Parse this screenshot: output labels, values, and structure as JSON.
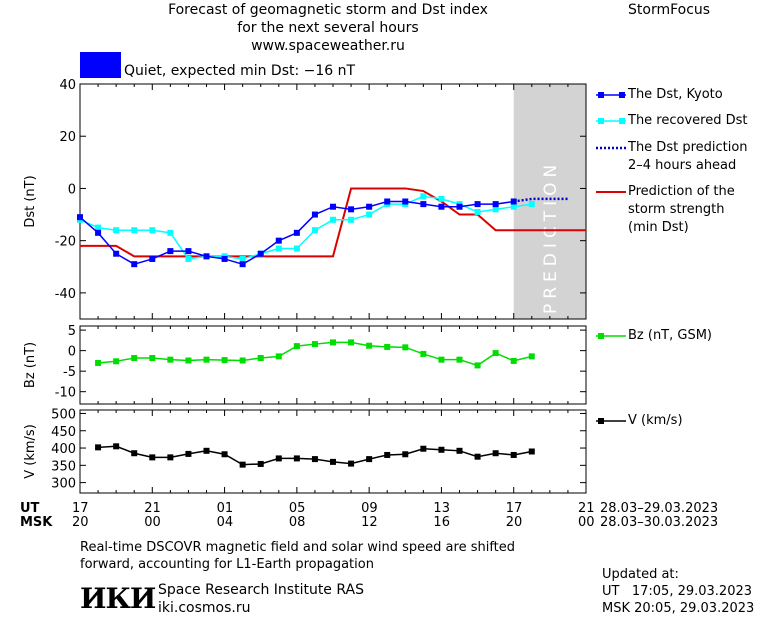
{
  "header": {
    "title_line1": "Forecast of geomagnetic storm and Dst index",
    "title_line2": "for the next several hours",
    "url": "www.spaceweather.ru",
    "brand": "StormFocus",
    "status_text": "Quiet, expected min Dst: −16 nT",
    "status_color": "#0000ff"
  },
  "colors": {
    "dst_kyoto": "#0000ff",
    "dst_recovered": "#00ffff",
    "dst_prediction": "#0000cc",
    "storm_strength": "#dd0000",
    "bz": "#00dd00",
    "v": "#000000",
    "prediction_band": "#d3d3d3"
  },
  "prediction_label": "PREDICTION",
  "time_axis": {
    "ut_label": "UT",
    "msk_label": "MSK",
    "ut_ticks": [
      "17",
      "21",
      "01",
      "05",
      "09",
      "13",
      "17",
      "21"
    ],
    "msk_ticks": [
      "20",
      "00",
      "04",
      "08",
      "12",
      "16",
      "20",
      "00"
    ],
    "ut_range": "28.03–29.03.2023",
    "msk_range": "28.03–30.03.2023"
  },
  "footer": {
    "note_line1": "Real-time DSCOVR magnetic field and solar wind speed are shifted",
    "note_line2": "forward, accounting for L1-Earth propagation",
    "logo": "ИКИ",
    "institute": "Space Research Institute RAS",
    "site": "iki.cosmos.ru",
    "updated_label": "Updated at:",
    "updated_ut": "UT   17:05, 29.03.2023",
    "updated_msk": "MSK 20:05, 29.03.2023"
  },
  "chart_data": [
    {
      "type": "line",
      "ylabel": "Dst (nT)",
      "ylim": [
        -50,
        40
      ],
      "yticks": [
        40,
        20,
        0,
        -20,
        -40
      ],
      "x_unit": "hours from 17 UT 28.03",
      "xlim": [
        0,
        28
      ],
      "prediction_band": [
        24,
        28
      ],
      "series": [
        {
          "name": "The Dst, Kyoto",
          "x": [
            0,
            1,
            2,
            3,
            4,
            5,
            6,
            7,
            8,
            9,
            10,
            11,
            12,
            13,
            14,
            15,
            16,
            17,
            18,
            19,
            20,
            21,
            22,
            23,
            24
          ],
          "values": [
            -11,
            -17,
            -25,
            -29,
            -27,
            -24,
            -24,
            -26,
            -27,
            -29,
            -25,
            -20,
            -17,
            -10,
            -7,
            -8,
            -7,
            -5,
            -5,
            -6,
            -7,
            -7,
            -6,
            -6,
            -5
          ]
        },
        {
          "name": "The recovered Dst",
          "x": [
            0,
            1,
            2,
            3,
            4,
            5,
            6,
            7,
            8,
            9,
            10,
            11,
            12,
            13,
            14,
            15,
            16,
            17,
            18,
            19,
            20,
            21,
            22,
            23,
            24,
            25
          ],
          "values": [
            -12,
            -15,
            -16,
            -16,
            -16,
            -17,
            -27,
            -26,
            -26,
            -27,
            -25,
            -23,
            -23,
            -16,
            -12,
            -12,
            -10,
            -6,
            -6,
            -3,
            -4,
            -6,
            -9,
            -8,
            -7,
            -6
          ]
        },
        {
          "name": "The Dst prediction 2–4 hours ahead",
          "x": [
            24,
            25,
            26,
            27
          ],
          "values": [
            -5,
            -4,
            -4,
            -4
          ]
        },
        {
          "name": "Prediction of the storm strength (min Dst)",
          "x": [
            0,
            2,
            3,
            14,
            15,
            16,
            18,
            19,
            20,
            21,
            22,
            23,
            28
          ],
          "values": [
            -22,
            -22,
            -26,
            -26,
            0,
            0,
            0,
            -1,
            -5,
            -10,
            -10,
            -16,
            -16
          ]
        }
      ]
    },
    {
      "type": "line",
      "ylabel": "Bz (nT)",
      "ylim": [
        -13,
        6
      ],
      "yticks": [
        5,
        0,
        -5,
        -10
      ],
      "series": [
        {
          "name": "Bz (nT, GSM)",
          "x": [
            1,
            2,
            3,
            4,
            5,
            6,
            7,
            8,
            9,
            10,
            11,
            12,
            13,
            14,
            15,
            16,
            17,
            18,
            19,
            20,
            21,
            22,
            23,
            24,
            25
          ],
          "values": [
            -3,
            -2.6,
            -1.8,
            -1.8,
            -2.2,
            -2.4,
            -2.2,
            -2.3,
            -2.4,
            -1.8,
            -1.4,
            1.1,
            1.6,
            2,
            2,
            1.2,
            0.9,
            0.8,
            -0.8,
            -2.2,
            -2.2,
            -3.6,
            -0.6,
            -2.5,
            -1.4
          ]
        }
      ]
    },
    {
      "type": "line",
      "ylabel": "V (km/s)",
      "ylim": [
        270,
        510
      ],
      "yticks": [
        500,
        450,
        400,
        350,
        300
      ],
      "series": [
        {
          "name": "V (km/s)",
          "x": [
            1,
            2,
            3,
            4,
            5,
            6,
            7,
            8,
            9,
            10,
            11,
            12,
            13,
            14,
            15,
            16,
            17,
            18,
            19,
            20,
            21,
            22,
            23,
            24,
            25
          ],
          "values": [
            402,
            405,
            385,
            373,
            373,
            383,
            392,
            382,
            352,
            354,
            370,
            370,
            368,
            360,
            355,
            368,
            380,
            382,
            398,
            395,
            392,
            375,
            385,
            380,
            390
          ]
        }
      ]
    }
  ]
}
